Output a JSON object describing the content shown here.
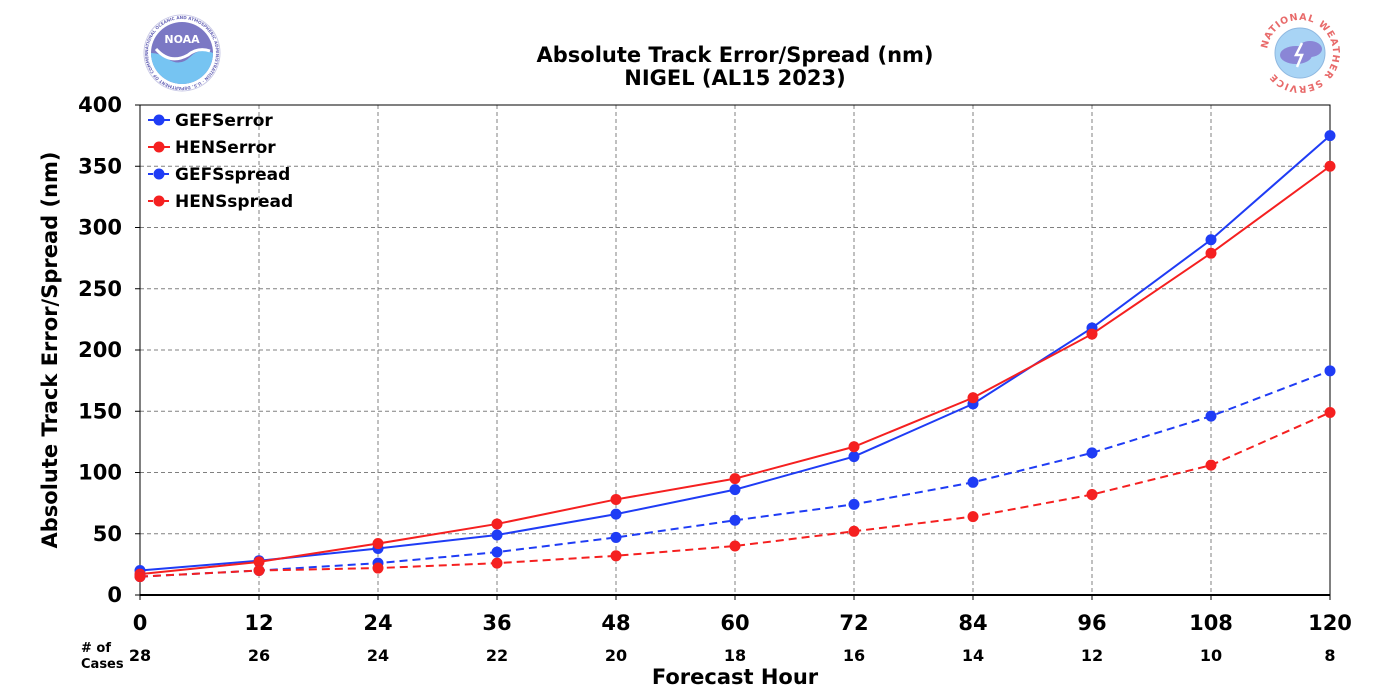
{
  "chart_data": {
    "type": "line",
    "title": "Absolute Track Error/Spread (nm)",
    "subtitle": "NIGEL (AL15 2023)",
    "xlabel": "Forecast Hour",
    "ylabel": "Absolute Track Error/Spread (nm)",
    "x": [
      0,
      12,
      24,
      36,
      48,
      60,
      72,
      84,
      96,
      108,
      120
    ],
    "xlim": [
      0,
      120
    ],
    "ylim": [
      0,
      400
    ],
    "yticks": [
      0,
      50,
      100,
      150,
      200,
      250,
      300,
      350,
      400
    ],
    "grid": true,
    "legend_position": "top-left",
    "cases_header": [
      "# of",
      "Cases"
    ],
    "cases": [
      28,
      26,
      24,
      22,
      20,
      18,
      16,
      14,
      12,
      10,
      8
    ],
    "series": [
      {
        "name": "GEFSerror",
        "color": "#1f3cf5",
        "style": "solid",
        "values": [
          20,
          28,
          38,
          49,
          66,
          86,
          113,
          156,
          218,
          290,
          375
        ]
      },
      {
        "name": "HENSerror",
        "color": "#f52020",
        "style": "solid",
        "values": [
          17,
          27,
          42,
          58,
          78,
          95,
          121,
          161,
          213,
          279,
          350
        ]
      },
      {
        "name": "GEFSspread",
        "color": "#1f3cf5",
        "style": "dashed",
        "values": [
          15,
          20,
          26,
          35,
          47,
          61,
          74,
          92,
          116,
          146,
          183
        ]
      },
      {
        "name": "HENSspread",
        "color": "#f52020",
        "style": "dashed",
        "values": [
          15,
          20,
          22,
          26,
          32,
          40,
          52,
          64,
          82,
          106,
          149
        ]
      }
    ]
  },
  "logos": {
    "noaa": {
      "text": "NOAA",
      "ring_text": "NATIONAL OCEANIC AND ATMOSPHERIC ADMINISTRATION · U.S. DEPARTMENT OF COMMERCE"
    },
    "nws": {
      "ring_text": "NATIONAL WEATHER SERVICE"
    }
  }
}
